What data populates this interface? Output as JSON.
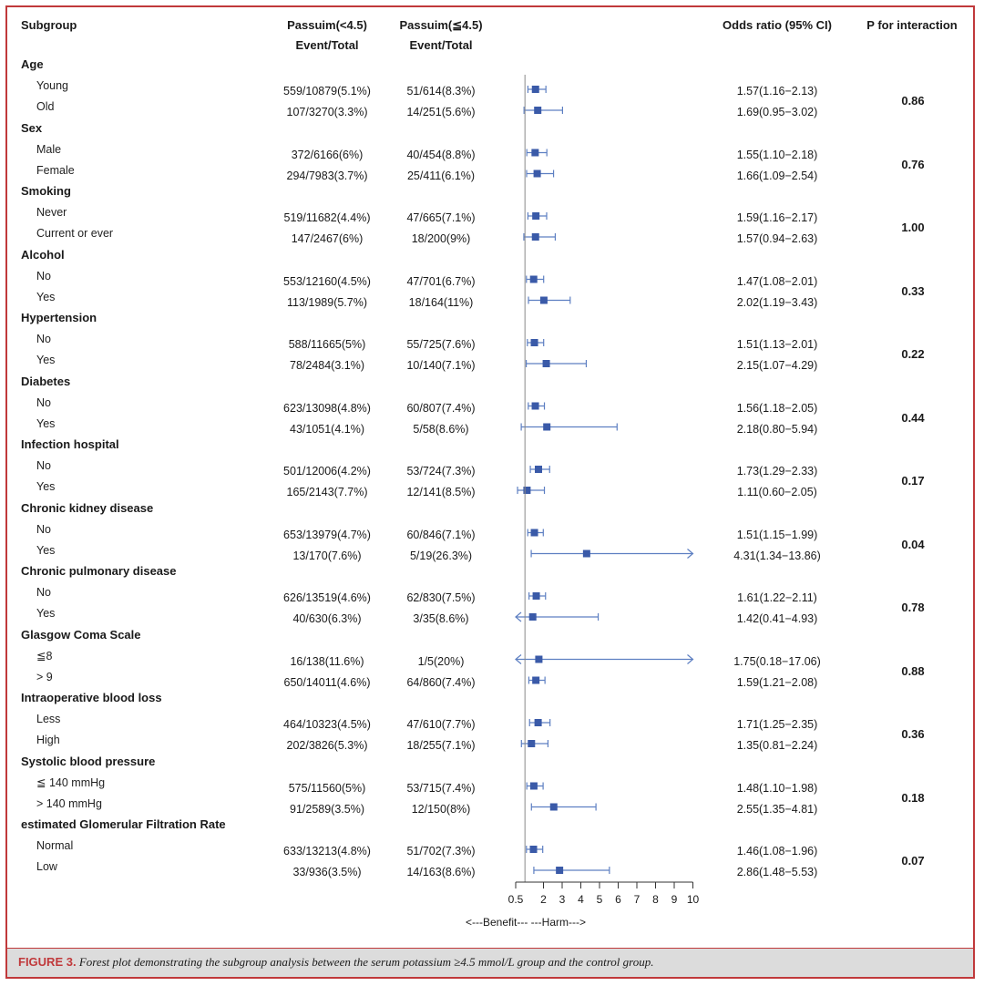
{
  "headers": {
    "subgroup": "Subgroup",
    "group1": "Passuim(<4.5)",
    "group2": "Passuim(≦4.5)",
    "event1": "Event/Total",
    "event2": "Event/Total",
    "or": "Odds ratio (95% CI)",
    "p": "P for interaction"
  },
  "axis_labels": [
    "0.5",
    "2",
    "3",
    "4",
    "5",
    "6",
    "7",
    "8",
    "9",
    "10"
  ],
  "direction_label": "<---Benefit---   ---Harm--->",
  "caption": {
    "label": "FIGURE 3.",
    "text": "Forest plot demonstrating the subgroup analysis between the serum potassium ≥4.5 mmol/L group and the control group."
  },
  "colors": {
    "marker": "#3a5aa8",
    "ci_line": "#5d7fc2",
    "ref_line": "#888888",
    "frame": "#c0393b"
  },
  "chart_data": {
    "type": "forest",
    "xlim": [
      0.5,
      10
    ],
    "ticks": [
      0.5,
      2,
      3,
      4,
      5,
      6,
      7,
      8,
      9,
      10
    ],
    "reference_line": 1,
    "groups": [
      {
        "name": "Age",
        "p": "0.86",
        "rows": [
          {
            "label": "Young",
            "g1": "559/10879(5.1%)",
            "g2": "51/614(8.3%)",
            "or": 1.57,
            "lo": 1.16,
            "hi": 2.13,
            "text": "1.57(1.16−2.13)"
          },
          {
            "label": "Old",
            "g1": "107/3270(3.3%)",
            "g2": "14/251(5.6%)",
            "or": 1.69,
            "lo": 0.95,
            "hi": 3.02,
            "text": "1.69(0.95−3.02)"
          }
        ]
      },
      {
        "name": "Sex",
        "p": "0.76",
        "rows": [
          {
            "label": "Male",
            "g1": "372/6166(6%)",
            "g2": "40/454(8.8%)",
            "or": 1.55,
            "lo": 1.1,
            "hi": 2.18,
            "text": "1.55(1.10−2.18)"
          },
          {
            "label": "Female",
            "g1": "294/7983(3.7%)",
            "g2": "25/411(6.1%)",
            "or": 1.66,
            "lo": 1.09,
            "hi": 2.54,
            "text": "1.66(1.09−2.54)"
          }
        ]
      },
      {
        "name": "Smoking",
        "p": "1.00",
        "rows": [
          {
            "label": "Never",
            "g1": "519/11682(4.4%)",
            "g2": "47/665(7.1%)",
            "or": 1.59,
            "lo": 1.16,
            "hi": 2.17,
            "text": "1.59(1.16−2.17)"
          },
          {
            "label": "Current or ever",
            "g1": "147/2467(6%)",
            "g2": "18/200(9%)",
            "or": 1.57,
            "lo": 0.94,
            "hi": 2.63,
            "text": "1.57(0.94−2.63)"
          }
        ]
      },
      {
        "name": "Alcohol",
        "p": "0.33",
        "rows": [
          {
            "label": "No",
            "g1": "553/12160(4.5%)",
            "g2": "47/701(6.7%)",
            "or": 1.47,
            "lo": 1.08,
            "hi": 2.01,
            "text": "1.47(1.08−2.01)"
          },
          {
            "label": "Yes",
            "g1": "113/1989(5.7%)",
            "g2": "18/164(11%)",
            "or": 2.02,
            "lo": 1.19,
            "hi": 3.43,
            "text": "2.02(1.19−3.43)"
          }
        ]
      },
      {
        "name": "Hypertension",
        "p": "0.22",
        "rows": [
          {
            "label": "No",
            "g1": "588/11665(5%)",
            "g2": "55/725(7.6%)",
            "or": 1.51,
            "lo": 1.13,
            "hi": 2.01,
            "text": "1.51(1.13−2.01)"
          },
          {
            "label": "Yes",
            "g1": "78/2484(3.1%)",
            "g2": "10/140(7.1%)",
            "or": 2.15,
            "lo": 1.07,
            "hi": 4.29,
            "text": "2.15(1.07−4.29)"
          }
        ]
      },
      {
        "name": "Diabetes",
        "p": "0.44",
        "rows": [
          {
            "label": "No",
            "g1": "623/13098(4.8%)",
            "g2": "60/807(7.4%)",
            "or": 1.56,
            "lo": 1.18,
            "hi": 2.05,
            "text": "1.56(1.18−2.05)"
          },
          {
            "label": "Yes",
            "g1": "43/1051(4.1%)",
            "g2": "5/58(8.6%)",
            "or": 2.18,
            "lo": 0.8,
            "hi": 5.94,
            "text": "2.18(0.80−5.94)"
          }
        ]
      },
      {
        "name": "Infection hospital",
        "p": "0.17",
        "rows": [
          {
            "label": "No",
            "g1": "501/12006(4.2%)",
            "g2": "53/724(7.3%)",
            "or": 1.73,
            "lo": 1.29,
            "hi": 2.33,
            "text": "1.73(1.29−2.33)"
          },
          {
            "label": "Yes",
            "g1": "165/2143(7.7%)",
            "g2": "12/141(8.5%)",
            "or": 1.11,
            "lo": 0.6,
            "hi": 2.05,
            "text": "1.11(0.60−2.05)"
          }
        ]
      },
      {
        "name": "Chronic kidney disease",
        "p": "0.04",
        "rows": [
          {
            "label": "No",
            "g1": "653/13979(4.7%)",
            "g2": "60/846(7.1%)",
            "or": 1.51,
            "lo": 1.15,
            "hi": 1.99,
            "text": "1.51(1.15−1.99)"
          },
          {
            "label": "Yes",
            "g1": "13/170(7.6%)",
            "g2": "5/19(26.3%)",
            "or": 4.31,
            "lo": 1.34,
            "hi": 13.86,
            "text": "4.31(1.34−13.86)"
          }
        ]
      },
      {
        "name": "Chronic pulmonary disease",
        "p": "0.78",
        "rows": [
          {
            "label": "No",
            "g1": "626/13519(4.6%)",
            "g2": "62/830(7.5%)",
            "or": 1.61,
            "lo": 1.22,
            "hi": 2.11,
            "text": "1.61(1.22−2.11)"
          },
          {
            "label": "Yes",
            "g1": "40/630(6.3%)",
            "g2": "3/35(8.6%)",
            "or": 1.42,
            "lo": 0.41,
            "hi": 4.93,
            "text": "1.42(0.41−4.93)"
          }
        ]
      },
      {
        "name": "Glasgow Coma Scale",
        "p": "0.88",
        "rows": [
          {
            "label": "≦8",
            "g1": "16/138(11.6%)",
            "g2": "1/5(20%)",
            "or": 1.75,
            "lo": 0.18,
            "hi": 17.06,
            "text": "1.75(0.18−17.06)"
          },
          {
            "label": "> 9",
            "g1": "650/14011(4.6%)",
            "g2": "64/860(7.4%)",
            "or": 1.59,
            "lo": 1.21,
            "hi": 2.08,
            "text": "1.59(1.21−2.08)"
          }
        ]
      },
      {
        "name": "Intraoperative blood loss",
        "p": "0.36",
        "rows": [
          {
            "label": "Less",
            "g1": "464/10323(4.5%)",
            "g2": "47/610(7.7%)",
            "or": 1.71,
            "lo": 1.25,
            "hi": 2.35,
            "text": "1.71(1.25−2.35)"
          },
          {
            "label": "High",
            "g1": "202/3826(5.3%)",
            "g2": "18/255(7.1%)",
            "or": 1.35,
            "lo": 0.81,
            "hi": 2.24,
            "text": "1.35(0.81−2.24)"
          }
        ]
      },
      {
        "name": "Systolic blood pressure",
        "p": "0.18",
        "rows": [
          {
            "label": "≦ 140 mmHg",
            "g1": "575/11560(5%)",
            "g2": "53/715(7.4%)",
            "or": 1.48,
            "lo": 1.1,
            "hi": 1.98,
            "text": "1.48(1.10−1.98)"
          },
          {
            "label": "> 140 mmHg",
            "g1": "91/2589(3.5%)",
            "g2": "12/150(8%)",
            "or": 2.55,
            "lo": 1.35,
            "hi": 4.81,
            "text": "2.55(1.35−4.81)"
          }
        ]
      },
      {
        "name": "estimated Glomerular Filtration Rate",
        "p": "0.07",
        "rows": [
          {
            "label": "Normal",
            "g1": "633/13213(4.8%)",
            "g2": "51/702(7.3%)",
            "or": 1.46,
            "lo": 1.08,
            "hi": 1.96,
            "text": "1.46(1.08−1.96)"
          },
          {
            "label": "Low",
            "g1": "33/936(3.5%)",
            "g2": "14/163(8.6%)",
            "or": 2.86,
            "lo": 1.48,
            "hi": 5.53,
            "text": "2.86(1.48−5.53)"
          }
        ]
      }
    ]
  }
}
